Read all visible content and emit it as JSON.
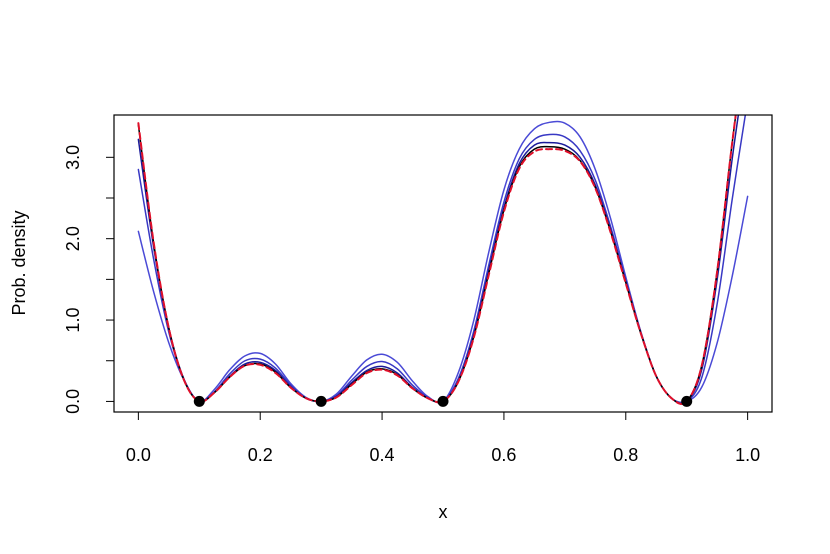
{
  "chart_data": {
    "type": "line",
    "title": "",
    "xlabel": "x",
    "ylabel": "Prob. density",
    "xlim": [
      -0.04,
      1.04
    ],
    "ylim": [
      -0.13,
      3.52
    ],
    "xticks": [
      0.0,
      0.2,
      0.4,
      0.6,
      0.8,
      1.0
    ],
    "xtick_labels": [
      "0.0",
      "0.2",
      "0.4",
      "0.6",
      "0.8",
      "1.0"
    ],
    "yticks": [
      0.0,
      0.5,
      1.0,
      1.5,
      2.0,
      2.5,
      3.0
    ],
    "ytick_labels": [
      "0.0",
      "",
      "1.0",
      "",
      "2.0",
      "",
      "3.0"
    ],
    "grid": false,
    "legend": "none",
    "points": {
      "color": "#000000",
      "x": [
        0.1,
        0.3,
        0.5,
        0.9
      ],
      "y": [
        0,
        0,
        0,
        0
      ]
    },
    "series": [
      {
        "color": "#4a4ad6",
        "style": "solid",
        "x": [
          0.0,
          0.025,
          0.05,
          0.075,
          0.1,
          0.125,
          0.15,
          0.175,
          0.2,
          0.225,
          0.25,
          0.275,
          0.3,
          0.325,
          0.35,
          0.375,
          0.4,
          0.425,
          0.45,
          0.475,
          0.5,
          0.525,
          0.55,
          0.575,
          0.6,
          0.625,
          0.65,
          0.675,
          0.7,
          0.725,
          0.75,
          0.775,
          0.8,
          0.825,
          0.85,
          0.875,
          0.9,
          0.925,
          0.95,
          0.975,
          1.0
        ],
        "y": [
          2.09,
          1.35,
          0.72,
          0.26,
          0.0,
          0.15,
          0.39,
          0.56,
          0.59,
          0.46,
          0.22,
          0.05,
          0.0,
          0.09,
          0.31,
          0.51,
          0.58,
          0.48,
          0.25,
          0.06,
          0.0,
          0.35,
          0.98,
          1.83,
          2.6,
          3.1,
          3.35,
          3.43,
          3.42,
          3.25,
          2.85,
          2.25,
          1.53,
          0.85,
          0.31,
          0.04,
          0.0,
          0.18,
          0.72,
          1.55,
          2.52
        ]
      },
      {
        "color": "#3838c4",
        "style": "solid",
        "x": [
          0.0,
          0.025,
          0.05,
          0.075,
          0.1,
          0.125,
          0.15,
          0.175,
          0.2,
          0.225,
          0.25,
          0.275,
          0.3,
          0.325,
          0.35,
          0.375,
          0.4,
          0.425,
          0.45,
          0.475,
          0.5,
          0.525,
          0.55,
          0.575,
          0.6,
          0.625,
          0.65,
          0.675,
          0.7,
          0.725,
          0.75,
          0.775,
          0.8,
          0.825,
          0.85,
          0.875,
          0.9,
          0.925,
          0.95,
          0.975,
          1.0
        ],
        "y": [
          2.85,
          1.75,
          0.85,
          0.27,
          0.0,
          0.12,
          0.34,
          0.5,
          0.52,
          0.41,
          0.2,
          0.04,
          0.0,
          0.07,
          0.26,
          0.43,
          0.49,
          0.4,
          0.2,
          0.05,
          0.0,
          0.28,
          0.85,
          1.67,
          2.45,
          2.98,
          3.22,
          3.28,
          3.25,
          3.08,
          2.72,
          2.15,
          1.49,
          0.84,
          0.31,
          0.04,
          0.0,
          0.3,
          1.2,
          2.5,
          3.7
        ]
      },
      {
        "color": "#1a1a99",
        "style": "solid",
        "x": [
          0.0,
          0.025,
          0.05,
          0.075,
          0.1,
          0.125,
          0.15,
          0.175,
          0.2,
          0.225,
          0.25,
          0.275,
          0.3,
          0.325,
          0.35,
          0.375,
          0.4,
          0.425,
          0.45,
          0.475,
          0.5,
          0.525,
          0.55,
          0.575,
          0.6,
          0.625,
          0.65,
          0.675,
          0.7,
          0.725,
          0.75,
          0.775,
          0.8,
          0.825,
          0.85,
          0.875,
          0.9,
          0.925,
          0.95,
          0.975,
          1.0
        ],
        "y": [
          3.22,
          1.9,
          0.9,
          0.27,
          0.0,
          0.11,
          0.31,
          0.46,
          0.48,
          0.38,
          0.18,
          0.04,
          0.0,
          0.06,
          0.23,
          0.38,
          0.43,
          0.35,
          0.17,
          0.04,
          0.0,
          0.25,
          0.8,
          1.6,
          2.38,
          2.92,
          3.15,
          3.18,
          3.15,
          3.0,
          2.66,
          2.11,
          1.47,
          0.83,
          0.31,
          0.04,
          0.0,
          0.4,
          1.5,
          3.0,
          4.3
        ]
      },
      {
        "color": "#000000",
        "style": "solid",
        "x": [
          0.0,
          0.025,
          0.05,
          0.075,
          0.1,
          0.125,
          0.15,
          0.175,
          0.2,
          0.225,
          0.25,
          0.275,
          0.3,
          0.325,
          0.35,
          0.375,
          0.4,
          0.425,
          0.45,
          0.475,
          0.5,
          0.525,
          0.55,
          0.575,
          0.6,
          0.625,
          0.65,
          0.675,
          0.7,
          0.725,
          0.75,
          0.775,
          0.8,
          0.825,
          0.85,
          0.875,
          0.9,
          0.925,
          0.95,
          0.975,
          1.0
        ],
        "y": [
          3.4,
          1.95,
          0.9,
          0.26,
          0.0,
          0.11,
          0.3,
          0.44,
          0.46,
          0.36,
          0.17,
          0.04,
          0.0,
          0.05,
          0.21,
          0.36,
          0.4,
          0.33,
          0.16,
          0.04,
          0.0,
          0.24,
          0.78,
          1.57,
          2.35,
          2.88,
          3.1,
          3.13,
          3.1,
          2.96,
          2.63,
          2.09,
          1.46,
          0.83,
          0.31,
          0.04,
          0.0,
          0.45,
          1.6,
          3.2,
          4.6
        ]
      },
      {
        "color": "#e0102a",
        "style": "dashed",
        "x": [
          0.0,
          0.025,
          0.05,
          0.075,
          0.1,
          0.125,
          0.15,
          0.175,
          0.2,
          0.225,
          0.25,
          0.275,
          0.3,
          0.325,
          0.35,
          0.375,
          0.4,
          0.425,
          0.45,
          0.475,
          0.5,
          0.525,
          0.55,
          0.575,
          0.6,
          0.625,
          0.65,
          0.675,
          0.7,
          0.725,
          0.75,
          0.775,
          0.8,
          0.825,
          0.85,
          0.875,
          0.9,
          0.925,
          0.95,
          0.975,
          1.0
        ],
        "y": [
          3.42,
          1.96,
          0.9,
          0.26,
          0.0,
          0.11,
          0.3,
          0.44,
          0.45,
          0.35,
          0.17,
          0.04,
          0.0,
          0.05,
          0.2,
          0.35,
          0.39,
          0.32,
          0.16,
          0.04,
          0.0,
          0.24,
          0.77,
          1.55,
          2.33,
          2.86,
          3.07,
          3.1,
          3.08,
          2.95,
          2.62,
          2.08,
          1.45,
          0.83,
          0.31,
          0.04,
          0.0,
          0.45,
          1.6,
          3.2,
          4.6
        ]
      }
    ]
  }
}
